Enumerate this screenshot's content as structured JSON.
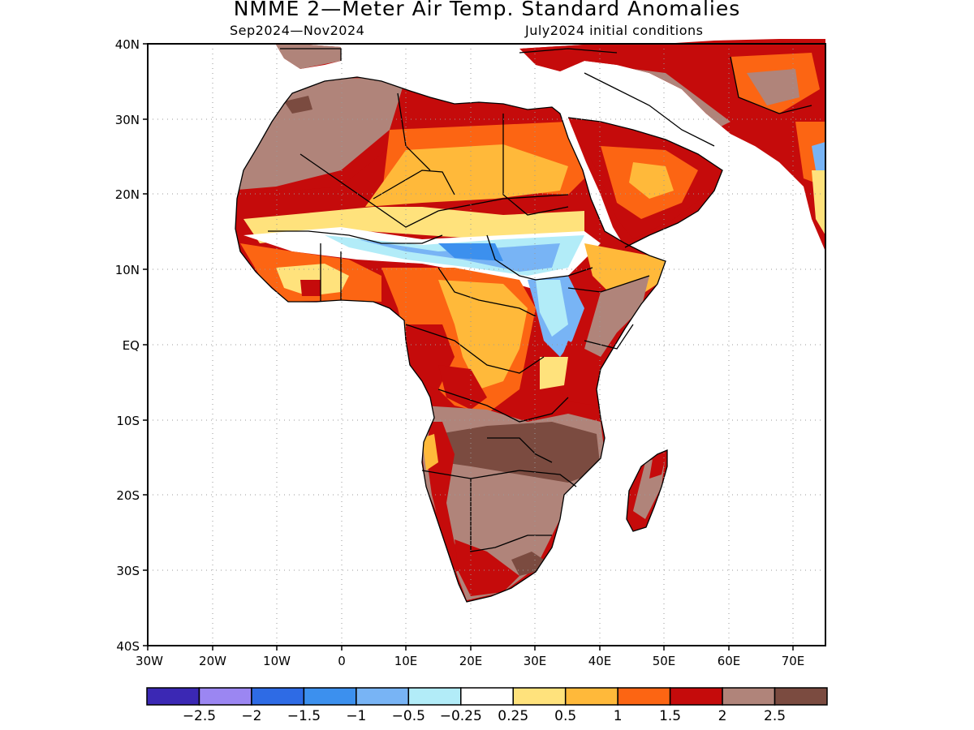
{
  "header": {
    "title": "NMME 2—Meter Air Temp. Standard Anomalies",
    "period": "Sep2024—Nov2024",
    "init": "July2024 initial conditions"
  },
  "axes": {
    "lat_labels": [
      "40N",
      "30N",
      "20N",
      "10N",
      "EQ",
      "10S",
      "20S",
      "30S",
      "40S"
    ],
    "lon_labels": [
      "30W",
      "20W",
      "10W",
      "0",
      "10E",
      "20E",
      "30E",
      "40E",
      "50E",
      "60E",
      "70E"
    ]
  },
  "colorbar": {
    "colors": [
      "#3b28b4",
      "#9b86f2",
      "#2e6be5",
      "#3c90ee",
      "#78b4f5",
      "#b2ecf8",
      "#ffffff",
      "#ffe27c",
      "#ffb93a",
      "#fc6513",
      "#c50b0b",
      "#b0847a",
      "#7b4b40"
    ],
    "labels": [
      "−2.5",
      "−2",
      "−1.5",
      "−1",
      "−0.5",
      "−0.25",
      "0.25",
      "0.5",
      "1",
      "1.5",
      "2",
      "2.5"
    ]
  }
}
